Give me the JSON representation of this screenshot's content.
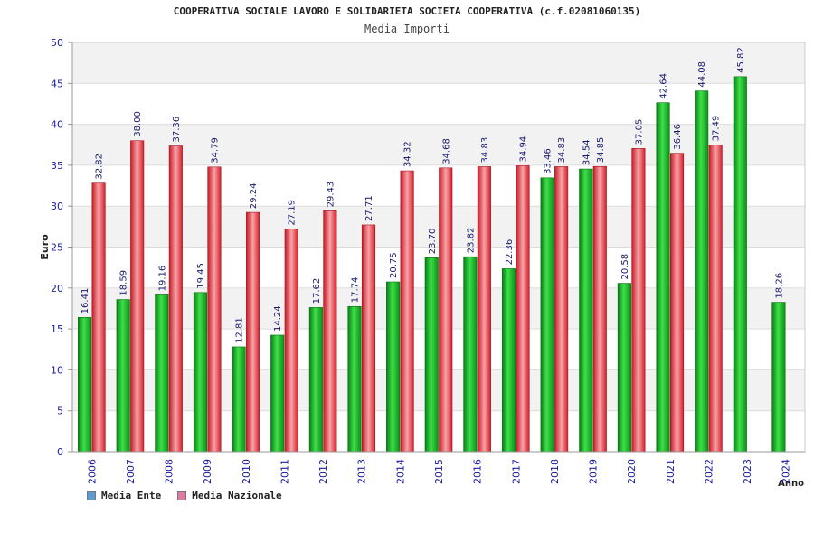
{
  "header": {
    "title": "COOPERATIVA SOCIALE LAVORO E SOLIDARIETA SOCIETA COOPERATIVA (c.f.02081060135)",
    "subtitle": "Media Importi"
  },
  "legend": {
    "items": [
      {
        "label": "Media Ente",
        "color": "#5b9bd5"
      },
      {
        "label": "Media Nazionale",
        "color": "#e07aa0"
      }
    ]
  },
  "colors": {
    "ente": "#13b51f",
    "nazionale": "#e8303a",
    "axis_text": "#1a1aa0",
    "band": "#f2f2f2"
  },
  "chart_data": {
    "type": "bar",
    "title": "COOPERATIVA SOCIALE LAVORO E SOLIDARIETA SOCIETA COOPERATIVA (c.f.02081060135)",
    "subtitle": "Media Importi",
    "xlabel": "Anno",
    "ylabel": "Euro",
    "ylim": [
      0,
      50
    ],
    "yticks": [
      0,
      5,
      10,
      15,
      20,
      25,
      30,
      35,
      40,
      45,
      50
    ],
    "grid": true,
    "legend_position": "bottom-left",
    "categories": [
      "2006",
      "2007",
      "2008",
      "2009",
      "2010",
      "2011",
      "2012",
      "2013",
      "2014",
      "2015",
      "2016",
      "2017",
      "2018",
      "2019",
      "2020",
      "2021",
      "2022",
      "2023",
      "2024"
    ],
    "series": [
      {
        "name": "Media Ente",
        "values": [
          16.41,
          18.59,
          19.16,
          19.45,
          12.81,
          14.24,
          17.62,
          17.74,
          20.75,
          23.7,
          23.82,
          22.36,
          33.46,
          34.54,
          20.58,
          42.64,
          44.08,
          45.82,
          18.26
        ]
      },
      {
        "name": "Media Nazionale",
        "values": [
          32.82,
          38.0,
          37.36,
          34.79,
          29.24,
          27.19,
          29.43,
          27.71,
          34.32,
          34.68,
          34.83,
          34.94,
          34.83,
          34.85,
          37.05,
          36.46,
          37.49,
          null,
          null
        ]
      }
    ]
  }
}
